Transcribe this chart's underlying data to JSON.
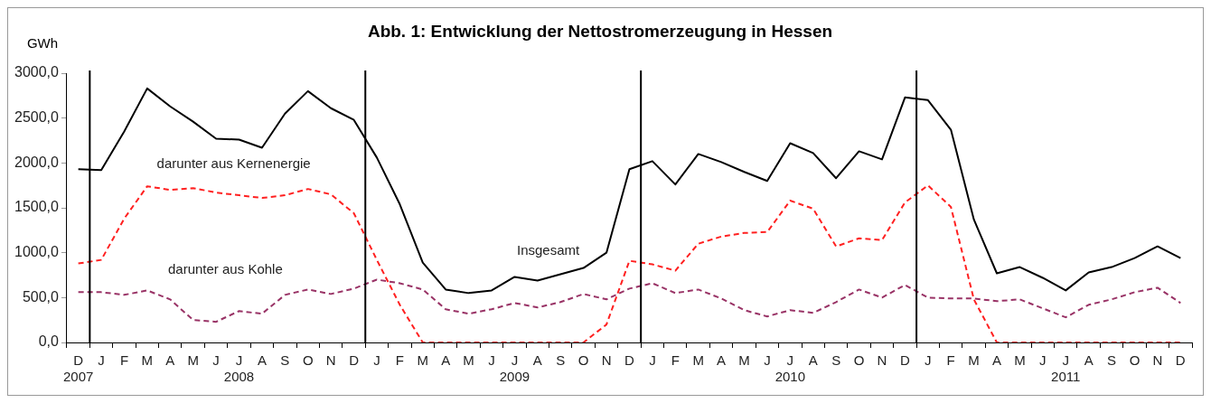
{
  "chart_data": {
    "type": "line",
    "title": "Abb. 1: Entwicklung der Nettostromerzeugung in Hessen",
    "ylabel": "GWh",
    "categories": [
      "D\n2007",
      "J",
      "F",
      "M",
      "A",
      "M",
      "J",
      "J\n2008",
      "A",
      "S",
      "O",
      "N",
      "D",
      "J",
      "F",
      "M",
      "A",
      "M",
      "J",
      "J\n2009",
      "A",
      "S",
      "O",
      "N",
      "D",
      "J",
      "F",
      "M",
      "A",
      "M",
      "J",
      "J\n2010",
      "A",
      "S",
      "O",
      "N",
      "D",
      "J",
      "F",
      "M",
      "A",
      "M",
      "J",
      "J\n2011",
      "A",
      "S",
      "O",
      "N",
      "D"
    ],
    "series": [
      {
        "name": "Insgesamt",
        "color": "#000000",
        "line_style": "solid",
        "values": [
          1930,
          1920,
          2350,
          2830,
          2630,
          2460,
          2270,
          2260,
          2170,
          2550,
          2800,
          2610,
          2480,
          2060,
          1540,
          890,
          590,
          550,
          580,
          730,
          690,
          760,
          830,
          1000,
          1930,
          2020,
          1760,
          2100,
          2010,
          1900,
          1800,
          2220,
          2110,
          1830,
          2130,
          2040,
          2730,
          2700,
          2370,
          1370,
          770,
          840,
          720,
          580,
          780,
          840,
          940,
          1070,
          940
        ]
      },
      {
        "name": "darunter aus Kernenergie",
        "color": "#ff2020",
        "line_style": "dashed",
        "values": [
          880,
          920,
          1380,
          1740,
          1700,
          1720,
          1670,
          1640,
          1610,
          1640,
          1710,
          1650,
          1440,
          920,
          420,
          0,
          0,
          0,
          0,
          0,
          0,
          0,
          0,
          200,
          910,
          870,
          800,
          1100,
          1180,
          1220,
          1230,
          1580,
          1490,
          1070,
          1160,
          1140,
          1560,
          1750,
          1510,
          480,
          0,
          0,
          0,
          0,
          0,
          0,
          0,
          0,
          0
        ]
      },
      {
        "name": "darunter aus Kohle",
        "color": "#993366",
        "line_style": "dashed",
        "values": [
          560,
          560,
          530,
          580,
          480,
          250,
          230,
          350,
          320,
          530,
          590,
          540,
          600,
          700,
          660,
          590,
          370,
          320,
          370,
          440,
          390,
          450,
          540,
          480,
          600,
          660,
          550,
          590,
          490,
          360,
          290,
          360,
          330,
          450,
          590,
          500,
          640,
          500,
          490,
          490,
          460,
          480,
          380,
          280,
          420,
          480,
          560,
          610,
          440
        ]
      }
    ],
    "ylim": [
      0,
      3000
    ],
    "yticks": [
      {
        "value": 0,
        "label": "0,0"
      },
      {
        "value": 500,
        "label": "500,0"
      },
      {
        "value": 1000,
        "label": "1000,0"
      },
      {
        "value": 1500,
        "label": "1500,0"
      },
      {
        "value": 2000,
        "label": "2000,0"
      },
      {
        "value": 2500,
        "label": "2500,0"
      },
      {
        "value": 3000,
        "label": "3000,0"
      }
    ],
    "grid": false,
    "legend": false,
    "marker": "none"
  }
}
